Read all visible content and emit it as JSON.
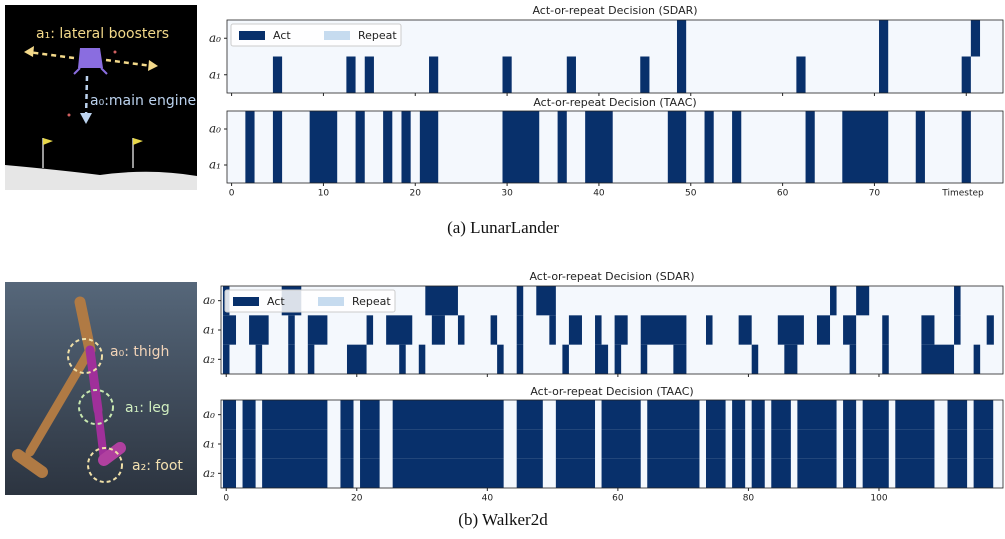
{
  "figure": {
    "captions": [
      "(a) LunarLander",
      "(b) Walker2d"
    ],
    "lunar_labels": [
      "a₁: lateral boosters",
      "a₀:main engine"
    ],
    "walker_labels": [
      "a₀: thigh",
      "a₁: leg",
      "a₂: foot"
    ]
  },
  "chart_data": [
    {
      "type": "timeline",
      "title": "Act-or-repeat Decision (SDAR)",
      "rows": [
        "a₀",
        "a₁"
      ],
      "series": [
        {
          "name": "Act",
          "color": "#08306b",
          "intervals": [
            [
              [
                48.5,
                49.5
              ],
              [
                70.5,
                71.5
              ],
              [
                80.5,
                81.5
              ]
            ],
            [
              [
                4.5,
                5.5
              ],
              [
                12.5,
                13.5
              ],
              [
                14.5,
                15.5
              ],
              [
                21.5,
                22.5
              ],
              [
                29.5,
                30.5
              ],
              [
                36.5,
                37.5
              ],
              [
                44.5,
                45.5
              ],
              [
                48.5,
                49.5
              ],
              [
                61.5,
                62.5
              ],
              [
                70.5,
                71.5
              ],
              [
                79.5,
                80.5
              ]
            ]
          ]
        },
        {
          "name": "Repeat",
          "color": "#c6dbef"
        }
      ],
      "background": "#f4f8fd",
      "legend": "upper left",
      "tick_labels": false,
      "xlim": [
        -0.5,
        84
      ],
      "xticks": [
        0,
        10,
        20,
        30,
        40,
        50,
        60,
        70,
        80
      ]
    },
    {
      "type": "timeline",
      "title": "Act-or-repeat Decision (TAAC)",
      "rows": [
        "a₀",
        "a₁"
      ],
      "series": [
        {
          "name": "Act",
          "color": "#08306b",
          "intervals": [
            [
              [
                1.5,
                2.5
              ],
              [
                4.5,
                5.5
              ],
              [
                8.5,
                11.5
              ],
              [
                13.5,
                14.5
              ],
              [
                16.5,
                17.5
              ],
              [
                18.5,
                19.5
              ],
              [
                20.5,
                22.5
              ],
              [
                29.5,
                33.5
              ],
              [
                35.5,
                36.5
              ],
              [
                38.5,
                41.5
              ],
              [
                47.5,
                49.5
              ],
              [
                51.5,
                52.5
              ],
              [
                54.5,
                55.5
              ],
              [
                62.5,
                63.5
              ],
              [
                66.5,
                71.5
              ],
              [
                74.5,
                75.5
              ],
              [
                79.5,
                80.5
              ]
            ],
            [
              [
                1.5,
                2.5
              ],
              [
                4.5,
                5.5
              ],
              [
                8.5,
                11.5
              ],
              [
                13.5,
                14.5
              ],
              [
                16.5,
                17.5
              ],
              [
                18.5,
                19.5
              ],
              [
                20.5,
                22.5
              ],
              [
                29.5,
                33.5
              ],
              [
                35.5,
                36.5
              ],
              [
                38.5,
                41.5
              ],
              [
                47.5,
                49.5
              ],
              [
                51.5,
                52.5
              ],
              [
                54.5,
                55.5
              ],
              [
                62.5,
                63.5
              ],
              [
                66.5,
                71.5
              ],
              [
                74.5,
                75.5
              ],
              [
                79.5,
                80.5
              ]
            ]
          ]
        }
      ],
      "background": "#f4f8fd",
      "tick_labels": true,
      "xlabel": "Timestep",
      "xlim": [
        -0.5,
        84
      ],
      "xticks": [
        0,
        10,
        20,
        30,
        40,
        50,
        60,
        70
      ]
    },
    {
      "type": "timeline",
      "title": "Act-or-repeat Decision (SDAR)",
      "rows": [
        "a₀",
        "a₁",
        "a₂"
      ],
      "series": [
        {
          "name": "Act",
          "color": "#08306b",
          "intervals": [
            [
              [
                -0.5,
                0.5
              ],
              [
                8.5,
                11.5
              ],
              [
                30.5,
                35.5
              ],
              [
                44.5,
                45.5
              ],
              [
                47.5,
                50.5
              ],
              [
                92.5,
                93.5
              ],
              [
                96.5,
                98.5
              ],
              [
                111.5,
                112.5
              ]
            ],
            [
              [
                -0.5,
                1.5
              ],
              [
                3.5,
                6.5
              ],
              [
                9.5,
                10.5
              ],
              [
                12.5,
                15.5
              ],
              [
                21.5,
                22.5
              ],
              [
                24.5,
                28.5
              ],
              [
                31.5,
                33.5
              ],
              [
                35.5,
                36.5
              ],
              [
                40.5,
                41.5
              ],
              [
                44.5,
                45.5
              ],
              [
                49.5,
                50.5
              ],
              [
                52.5,
                54.5
              ],
              [
                56.5,
                57.5
              ],
              [
                59.5,
                61.5
              ],
              [
                63.5,
                70.5
              ],
              [
                73.5,
                74.5
              ],
              [
                78.5,
                80.5
              ],
              [
                84.5,
                88.5
              ],
              [
                90.5,
                92.5
              ],
              [
                94.5,
                96.5
              ],
              [
                100.5,
                101.5
              ],
              [
                106.5,
                108.5
              ],
              [
                111.5,
                112.5
              ],
              [
                116.5,
                117.6
              ]
            ],
            [
              [
                -0.5,
                0.5
              ],
              [
                4.5,
                5.5
              ],
              [
                9.5,
                10.5
              ],
              [
                12.5,
                13.5
              ],
              [
                18.5,
                21.5
              ],
              [
                26.5,
                27.5
              ],
              [
                29.5,
                30.5
              ],
              [
                41.5,
                42.5
              ],
              [
                44.5,
                45.5
              ],
              [
                51.5,
                52.5
              ],
              [
                56.5,
                58.5
              ],
              [
                59.5,
                60.5
              ],
              [
                63.5,
                64.5
              ],
              [
                68.5,
                70.5
              ],
              [
                80.5,
                81.5
              ],
              [
                85.5,
                87.5
              ],
              [
                95.5,
                96.5
              ],
              [
                100.5,
                101.5
              ],
              [
                106.5,
                111.5
              ],
              [
                114.5,
                115.5
              ]
            ]
          ]
        },
        {
          "name": "Repeat",
          "color": "#c6dbef"
        }
      ],
      "background": "#f4f8fd",
      "legend": "upper left",
      "tick_labels": false,
      "xlim": [
        -0.8,
        119
      ],
      "xticks": [
        0,
        20,
        40,
        60,
        80,
        100
      ]
    },
    {
      "type": "timeline",
      "title": "Act-or-repeat Decision (TAAC)",
      "rows": [
        "a₀",
        "a₁",
        "a₂"
      ],
      "series": [
        {
          "name": "Act",
          "color": "#08306b",
          "intervals": [
            [
              [
                -0.5,
                1.5
              ],
              [
                2.5,
                4.5
              ],
              [
                5.5,
                15.5
              ],
              [
                17.5,
                19.5
              ],
              [
                20.5,
                23.5
              ],
              [
                25.5,
                42.5
              ],
              [
                44.5,
                48.5
              ],
              [
                50.5,
                56.5
              ],
              [
                57.5,
                63.5
              ],
              [
                64.5,
                72.5
              ],
              [
                73.5,
                76.5
              ],
              [
                77.5,
                79.5
              ],
              [
                80.5,
                82.5
              ],
              [
                83.5,
                86.5
              ],
              [
                87.5,
                93.5
              ],
              [
                94.5,
                96.5
              ],
              [
                97.5,
                101.5
              ],
              [
                102.5,
                108.5
              ],
              [
                110.5,
                113.5
              ],
              [
                114.5,
                117.5
              ]
            ],
            [
              [
                -0.5,
                1.5
              ],
              [
                2.5,
                4.5
              ],
              [
                5.5,
                15.5
              ],
              [
                17.5,
                19.5
              ],
              [
                20.5,
                23.5
              ],
              [
                25.5,
                42.5
              ],
              [
                44.5,
                48.5
              ],
              [
                50.5,
                56.5
              ],
              [
                57.5,
                63.5
              ],
              [
                64.5,
                72.5
              ],
              [
                73.5,
                76.5
              ],
              [
                77.5,
                79.5
              ],
              [
                80.5,
                82.5
              ],
              [
                83.5,
                86.5
              ],
              [
                87.5,
                93.5
              ],
              [
                94.5,
                96.5
              ],
              [
                97.5,
                101.5
              ],
              [
                102.5,
                108.5
              ],
              [
                110.5,
                113.5
              ],
              [
                114.5,
                117.5
              ]
            ],
            [
              [
                -0.5,
                1.5
              ],
              [
                2.5,
                4.5
              ],
              [
                5.5,
                15.5
              ],
              [
                17.5,
                19.5
              ],
              [
                20.5,
                23.5
              ],
              [
                25.5,
                42.5
              ],
              [
                44.5,
                48.5
              ],
              [
                50.5,
                56.5
              ],
              [
                57.5,
                63.5
              ],
              [
                64.5,
                72.5
              ],
              [
                73.5,
                76.5
              ],
              [
                77.5,
                79.5
              ],
              [
                80.5,
                82.5
              ],
              [
                83.5,
                86.5
              ],
              [
                87.5,
                93.5
              ],
              [
                94.5,
                96.5
              ],
              [
                97.5,
                101.5
              ],
              [
                102.5,
                108.5
              ],
              [
                110.5,
                113.5
              ],
              [
                114.5,
                117.5
              ]
            ]
          ]
        }
      ],
      "background": "#f4f8fd",
      "tick_labels": true,
      "xlim": [
        -0.8,
        119
      ],
      "xticks": [
        0,
        20,
        40,
        60,
        80,
        100
      ]
    }
  ]
}
